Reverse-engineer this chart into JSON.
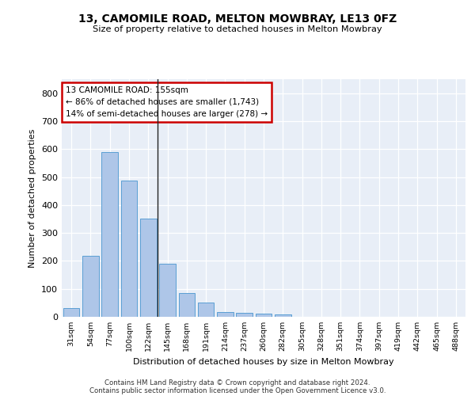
{
  "title": "13, CAMOMILE ROAD, MELTON MOWBRAY, LE13 0FZ",
  "subtitle": "Size of property relative to detached houses in Melton Mowbray",
  "xlabel": "Distribution of detached houses by size in Melton Mowbray",
  "ylabel": "Number of detached properties",
  "bar_values": [
    30,
    218,
    588,
    488,
    350,
    190,
    85,
    52,
    18,
    15,
    10,
    8,
    0,
    0,
    0,
    0,
    0,
    0,
    0,
    0,
    0
  ],
  "categories": [
    "31sqm",
    "54sqm",
    "77sqm",
    "100sqm",
    "122sqm",
    "145sqm",
    "168sqm",
    "191sqm",
    "214sqm",
    "237sqm",
    "260sqm",
    "282sqm",
    "305sqm",
    "328sqm",
    "351sqm",
    "374sqm",
    "397sqm",
    "419sqm",
    "442sqm",
    "465sqm",
    "488sqm"
  ],
  "bar_color": "#aec6e8",
  "bar_edge_color": "#5a9fd4",
  "highlight_line_index": 4,
  "annotation_text": "13 CAMOMILE ROAD: 155sqm\n← 86% of detached houses are smaller (1,743)\n14% of semi-detached houses are larger (278) →",
  "annotation_box_color": "#ffffff",
  "annotation_box_edge_color": "#cc0000",
  "ylim": [
    0,
    850
  ],
  "yticks": [
    0,
    100,
    200,
    300,
    400,
    500,
    600,
    700,
    800
  ],
  "background_color": "#e8eef7",
  "grid_color": "#ffffff",
  "footer1": "Contains HM Land Registry data © Crown copyright and database right 2024.",
  "footer2": "Contains public sector information licensed under the Open Government Licence v3.0."
}
